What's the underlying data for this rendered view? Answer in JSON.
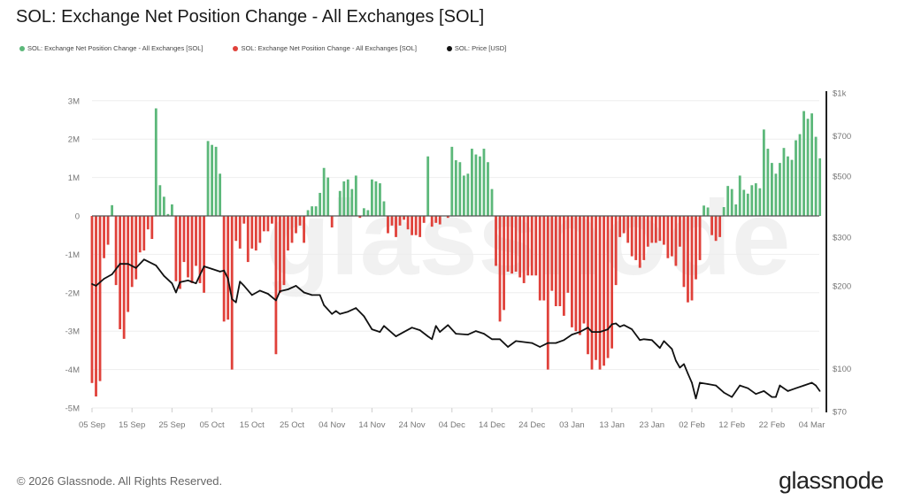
{
  "title": "SOL: Exchange Net Position Change - All Exchanges [SOL]",
  "legend": [
    {
      "label": "SOL: Exchange Net Position Change - All Exchanges [SOL]",
      "color": "#5cb87a"
    },
    {
      "label": "SOL: Exchange Net Position Change - All Exchanges [SOL]",
      "color": "#e0413a"
    },
    {
      "label": "SOL: Price [USD]",
      "color": "#111111"
    }
  ],
  "watermark": "glassnode",
  "footer": "© 2026 Glassnode. All Rights Reserved.",
  "logo": "glassnode",
  "chart_data": {
    "type": "bar+line",
    "title": "SOL: Exchange Net Position Change - All Exchanges [SOL]",
    "grid": true,
    "legend_position": "top-left",
    "colors": {
      "positive": "#5cb87a",
      "negative": "#e0413a",
      "price": "#111111"
    },
    "left_axis": {
      "ylim": [
        -5000000,
        3000000
      ],
      "ticks": [
        {
          "value": 3000000,
          "label": "3M"
        },
        {
          "value": 2000000,
          "label": "2M"
        },
        {
          "value": 1000000,
          "label": "1M"
        },
        {
          "value": 0,
          "label": "0"
        },
        {
          "value": -1000000,
          "label": "-1M"
        },
        {
          "value": -2000000,
          "label": "-2M"
        },
        {
          "value": -3000000,
          "label": "-3M"
        },
        {
          "value": -4000000,
          "label": "-4M"
        },
        {
          "value": -5000000,
          "label": "-5M"
        }
      ]
    },
    "right_axis": {
      "scale": "log",
      "ylim": [
        70,
        1000
      ],
      "ticks": [
        {
          "value": 1000,
          "label": "$1k"
        },
        {
          "value": 700,
          "label": "$700"
        },
        {
          "value": 500,
          "label": "$500"
        },
        {
          "value": 300,
          "label": "$300"
        },
        {
          "value": 200,
          "label": "$200"
        },
        {
          "value": 100,
          "label": "$100"
        },
        {
          "value": 70,
          "label": "$70"
        }
      ]
    },
    "x_ticks": [
      {
        "label": "05 Sep",
        "date": "2025-09-05"
      },
      {
        "label": "15 Sep",
        "date": "2025-09-15"
      },
      {
        "label": "25 Sep",
        "date": "2025-09-25"
      },
      {
        "label": "05 Oct",
        "date": "2025-10-05"
      },
      {
        "label": "15 Oct",
        "date": "2025-10-15"
      },
      {
        "label": "25 Oct",
        "date": "2025-10-25"
      },
      {
        "label": "04 Nov",
        "date": "2025-11-04"
      },
      {
        "label": "14 Nov",
        "date": "2025-11-14"
      },
      {
        "label": "24 Nov",
        "date": "2025-11-24"
      },
      {
        "label": "04 Dec",
        "date": "2025-12-04"
      },
      {
        "label": "14 Dec",
        "date": "2025-12-14"
      },
      {
        "label": "24 Dec",
        "date": "2025-12-24"
      },
      {
        "label": "03 Jan",
        "date": "2026-01-03"
      },
      {
        "label": "13 Jan",
        "date": "2026-01-13"
      },
      {
        "label": "23 Jan",
        "date": "2026-01-23"
      },
      {
        "label": "02 Feb",
        "date": "2026-02-02"
      },
      {
        "label": "12 Feb",
        "date": "2026-02-12"
      },
      {
        "label": "22 Feb",
        "date": "2026-02-22"
      },
      {
        "label": "04 Mar",
        "date": "2026-03-04"
      }
    ],
    "net_position_change": {
      "first_date": "2025-09-05",
      "interval": "1 day",
      "values": [
        -4350000,
        -4700000,
        -4300000,
        -1100000,
        -750000,
        280000,
        -1800000,
        -2950000,
        -3200000,
        -2500000,
        -1850000,
        -1650000,
        -950000,
        -900000,
        -350000,
        -600000,
        2800000,
        800000,
        500000,
        50000,
        300000,
        -1700000,
        -1900000,
        -1200000,
        -1600000,
        -1750000,
        -1300000,
        -1750000,
        -2000000,
        1950000,
        1850000,
        1800000,
        1100000,
        -2750000,
        -2700000,
        -4000000,
        -650000,
        -850000,
        -200000,
        -1200000,
        -850000,
        -900000,
        -700000,
        -400000,
        -400000,
        -200000,
        -3600000,
        -2000000,
        -1800000,
        -900000,
        -700000,
        -450000,
        -250000,
        -700000,
        150000,
        250000,
        250000,
        600000,
        1250000,
        1000000,
        -300000,
        0,
        650000,
        900000,
        950000,
        700000,
        1050000,
        -50000,
        200000,
        150000,
        950000,
        900000,
        850000,
        380000,
        -450000,
        -250000,
        -550000,
        -250000,
        -100000,
        -350000,
        -500000,
        -500000,
        -550000,
        -180000,
        1550000,
        -280000,
        -180000,
        -220000,
        0,
        -50000,
        1800000,
        1450000,
        1400000,
        1050000,
        1100000,
        1750000,
        1600000,
        1550000,
        1750000,
        1400000,
        700000,
        -1300000,
        -2750000,
        -2450000,
        -1450000,
        -1500000,
        -1450000,
        -1600000,
        -1750000,
        -1550000,
        -1550000,
        -1550000,
        -2200000,
        -2200000,
        -4000000,
        -1950000,
        -2350000,
        -2350000,
        -2600000,
        -2000000,
        -2900000,
        -3000000,
        -3100000,
        -2800000,
        -3600000,
        -4000000,
        -3750000,
        -4000000,
        -3900000,
        -3700000,
        -3450000,
        -1800000,
        -550000,
        -450000,
        -700000,
        -1050000,
        -1150000,
        -1350000,
        -1150000,
        -800000,
        -700000,
        -700000,
        -650000,
        -750000,
        -1100000,
        -1050000,
        -1300000,
        -800000,
        -1850000,
        -2250000,
        -2200000,
        -1650000,
        -1150000,
        270000,
        220000,
        -500000,
        -650000,
        -550000,
        230000,
        780000,
        700000,
        300000,
        1050000,
        680000,
        580000,
        800000,
        850000,
        720000,
        2250000,
        1750000,
        1380000,
        1100000,
        1380000,
        1770000,
        1550000,
        1460000,
        1970000,
        2130000,
        2730000,
        2530000,
        2670000,
        2060000,
        1500000
      ]
    },
    "price": [
      [
        "2025-09-05",
        203
      ],
      [
        "2025-09-06",
        200
      ],
      [
        "2025-09-08",
        212
      ],
      [
        "2025-09-10",
        220
      ],
      [
        "2025-09-12",
        240
      ],
      [
        "2025-09-14",
        240
      ],
      [
        "2025-09-16",
        232
      ],
      [
        "2025-09-18",
        249
      ],
      [
        "2025-09-19",
        245
      ],
      [
        "2025-09-21",
        237
      ],
      [
        "2025-09-23",
        217
      ],
      [
        "2025-09-25",
        204
      ],
      [
        "2025-09-26",
        189
      ],
      [
        "2025-09-27",
        206
      ],
      [
        "2025-09-29",
        209
      ],
      [
        "2025-10-01",
        204
      ],
      [
        "2025-10-03",
        235
      ],
      [
        "2025-10-05",
        230
      ],
      [
        "2025-10-07",
        225
      ],
      [
        "2025-10-08",
        227
      ],
      [
        "2025-10-09",
        212
      ],
      [
        "2025-10-10",
        179
      ],
      [
        "2025-10-11",
        174
      ],
      [
        "2025-10-12",
        207
      ],
      [
        "2025-10-13",
        200
      ],
      [
        "2025-10-15",
        185
      ],
      [
        "2025-10-17",
        192
      ],
      [
        "2025-10-19",
        187
      ],
      [
        "2025-10-21",
        177
      ],
      [
        "2025-10-22",
        191
      ],
      [
        "2025-10-24",
        194
      ],
      [
        "2025-10-26",
        200
      ],
      [
        "2025-10-28",
        189
      ],
      [
        "2025-10-30",
        185
      ],
      [
        "2025-11-01",
        185
      ],
      [
        "2025-11-02",
        170
      ],
      [
        "2025-11-04",
        158
      ],
      [
        "2025-11-05",
        162
      ],
      [
        "2025-11-06",
        158
      ],
      [
        "2025-11-08",
        161
      ],
      [
        "2025-11-10",
        166
      ],
      [
        "2025-11-12",
        155
      ],
      [
        "2025-11-14",
        139
      ],
      [
        "2025-11-16",
        136
      ],
      [
        "2025-11-17",
        143
      ],
      [
        "2025-11-20",
        131
      ],
      [
        "2025-11-22",
        136
      ],
      [
        "2025-11-24",
        141
      ],
      [
        "2025-11-26",
        138
      ],
      [
        "2025-11-28",
        131
      ],
      [
        "2025-11-29",
        128
      ],
      [
        "2025-11-30",
        143
      ],
      [
        "2025-12-01",
        136
      ],
      [
        "2025-12-03",
        144
      ],
      [
        "2025-12-05",
        134
      ],
      [
        "2025-12-08",
        133
      ],
      [
        "2025-12-10",
        137
      ],
      [
        "2025-12-12",
        134
      ],
      [
        "2025-12-14",
        128
      ],
      [
        "2025-12-16",
        128
      ],
      [
        "2025-12-18",
        120
      ],
      [
        "2025-12-20",
        126
      ],
      [
        "2025-12-24",
        124
      ],
      [
        "2025-12-26",
        120
      ],
      [
        "2025-12-28",
        124
      ],
      [
        "2025-12-30",
        124
      ],
      [
        "2026-01-01",
        127
      ],
      [
        "2026-01-03",
        133
      ],
      [
        "2026-01-05",
        136
      ],
      [
        "2026-01-07",
        141
      ],
      [
        "2026-01-08",
        136
      ],
      [
        "2026-01-10",
        136
      ],
      [
        "2026-01-12",
        139
      ],
      [
        "2026-01-13",
        145
      ],
      [
        "2026-01-14",
        146
      ],
      [
        "2026-01-15",
        142
      ],
      [
        "2026-01-16",
        144
      ],
      [
        "2026-01-18",
        139
      ],
      [
        "2026-01-20",
        127
      ],
      [
        "2026-01-21",
        128
      ],
      [
        "2026-01-23",
        127
      ],
      [
        "2026-01-25",
        119
      ],
      [
        "2026-01-26",
        126
      ],
      [
        "2026-01-28",
        118
      ],
      [
        "2026-01-29",
        107
      ],
      [
        "2026-01-30",
        101
      ],
      [
        "2026-01-31",
        104
      ],
      [
        "2026-02-01",
        96
      ],
      [
        "2026-02-02",
        89
      ],
      [
        "2026-02-03",
        78
      ],
      [
        "2026-02-04",
        89
      ],
      [
        "2026-02-06",
        88
      ],
      [
        "2026-02-08",
        87
      ],
      [
        "2026-02-10",
        82
      ],
      [
        "2026-02-12",
        79
      ],
      [
        "2026-02-14",
        87
      ],
      [
        "2026-02-16",
        85
      ],
      [
        "2026-02-18",
        81
      ],
      [
        "2026-02-20",
        83
      ],
      [
        "2026-02-22",
        79
      ],
      [
        "2026-02-23",
        79
      ],
      [
        "2026-02-24",
        87
      ],
      [
        "2026-02-26",
        83
      ],
      [
        "2026-02-28",
        85
      ],
      [
        "2026-03-02",
        87
      ],
      [
        "2026-03-04",
        89
      ],
      [
        "2026-03-05",
        87
      ],
      [
        "2026-03-06",
        83
      ]
    ]
  }
}
